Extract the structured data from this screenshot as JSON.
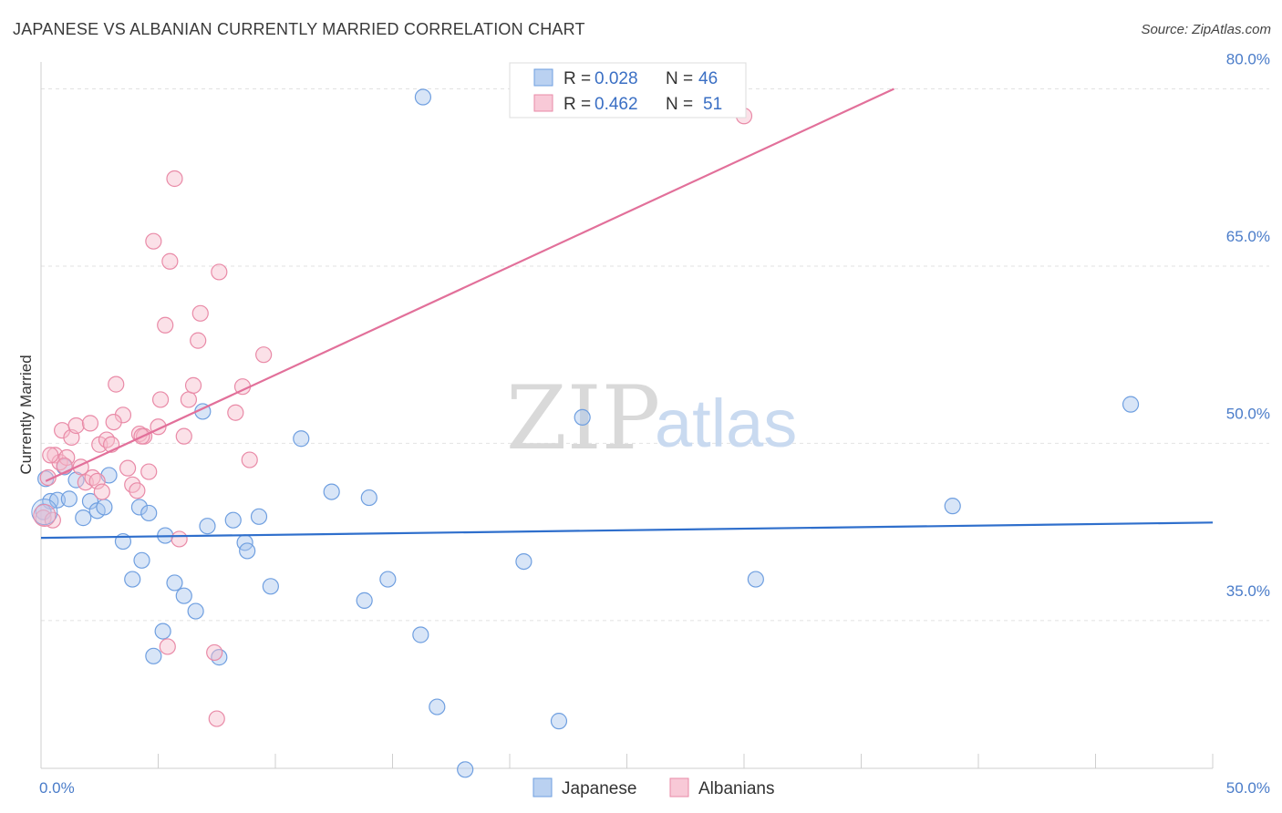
{
  "title": "JAPANESE VS ALBANIAN CURRENTLY MARRIED CORRELATION CHART",
  "source": "Source: ZipAtlas.com",
  "watermark": {
    "zip": "ZIP",
    "atlas": "atlas"
  },
  "colors": {
    "japanese_fill": "#a9c6ee",
    "japanese_stroke": "#6f9fe0",
    "japanese_line": "#2f6fcc",
    "albanian_fill": "#f6bccd",
    "albanian_stroke": "#e98aa7",
    "albanian_line": "#e2709a",
    "grid": "#e2e2e2",
    "tick_label": "#4a7cc9"
  },
  "legend": {
    "rows": [
      {
        "r_label": "R =",
        "r_value": "0.028",
        "n_label": "N =",
        "n_value": "46",
        "series": "japanese"
      },
      {
        "r_label": "R =",
        "r_value": "0.462",
        "n_label": "N =",
        "n_value": "51",
        "series": "albanian"
      }
    ]
  },
  "chart_data": {
    "type": "scatter",
    "ylabel": "Currently Married",
    "xlabel": "",
    "xlim": [
      0,
      50
    ],
    "ylim": [
      22.5,
      81.5
    ],
    "x_tick_labels": [
      {
        "value": 0,
        "label": "0.0%"
      },
      {
        "value": 50,
        "label": "50.0%"
      }
    ],
    "x_minor_ticks": [
      0,
      5,
      10,
      15,
      20,
      25,
      30,
      35,
      40,
      45,
      50
    ],
    "y_ticks": [
      {
        "value": 35,
        "label": "35.0%"
      },
      {
        "value": 50,
        "label": "50.0%"
      },
      {
        "value": 65,
        "label": "65.0%"
      },
      {
        "value": 80,
        "label": "80.0%"
      }
    ],
    "grid": true,
    "legend_placement": "top-center",
    "series": [
      {
        "name": "Japanese",
        "key": "japanese",
        "trend": {
          "x": [
            0,
            50
          ],
          "y": [
            42.0,
            43.3
          ]
        },
        "points": [
          [
            0.2,
            47.0
          ],
          [
            0.4,
            45.1
          ],
          [
            0.7,
            45.2
          ],
          [
            1.0,
            48.0
          ],
          [
            1.2,
            45.3
          ],
          [
            1.5,
            46.9
          ],
          [
            1.8,
            43.7
          ],
          [
            2.1,
            45.1
          ],
          [
            2.4,
            44.3
          ],
          [
            2.7,
            44.6
          ],
          [
            2.9,
            47.3
          ],
          [
            3.5,
            41.7
          ],
          [
            3.9,
            38.5
          ],
          [
            4.2,
            44.6
          ],
          [
            4.3,
            40.1
          ],
          [
            4.6,
            44.1
          ],
          [
            4.8,
            32.0
          ],
          [
            5.2,
            34.1
          ],
          [
            5.3,
            42.2
          ],
          [
            5.7,
            38.2
          ],
          [
            6.1,
            37.1
          ],
          [
            6.6,
            35.8
          ],
          [
            6.9,
            52.7
          ],
          [
            7.1,
            43.0
          ],
          [
            7.6,
            31.9
          ],
          [
            8.2,
            43.5
          ],
          [
            8.7,
            41.6
          ],
          [
            8.8,
            40.9
          ],
          [
            9.3,
            43.8
          ],
          [
            9.8,
            37.9
          ],
          [
            11.1,
            50.4
          ],
          [
            12.4,
            45.9
          ],
          [
            13.8,
            36.7
          ],
          [
            14.0,
            45.4
          ],
          [
            14.8,
            38.5
          ],
          [
            16.2,
            33.8
          ],
          [
            16.3,
            79.3
          ],
          [
            16.9,
            27.7
          ],
          [
            18.1,
            22.4
          ],
          [
            20.6,
            40.0
          ],
          [
            22.1,
            26.5
          ],
          [
            23.1,
            52.2
          ],
          [
            30.5,
            38.5
          ],
          [
            38.9,
            44.7
          ],
          [
            46.5,
            53.3
          ],
          [
            0.1,
            44.2
          ]
        ]
      },
      {
        "name": "Albanians",
        "key": "albanian",
        "trend": {
          "x": [
            0.2,
            36.4
          ],
          "y": [
            46.8,
            80.0
          ]
        },
        "points": [
          [
            0.1,
            43.7
          ],
          [
            0.3,
            47.1
          ],
          [
            0.5,
            43.5
          ],
          [
            0.6,
            49.0
          ],
          [
            0.8,
            48.4
          ],
          [
            0.9,
            51.1
          ],
          [
            1.1,
            48.8
          ],
          [
            1.3,
            50.5
          ],
          [
            1.5,
            51.5
          ],
          [
            1.7,
            48.0
          ],
          [
            1.9,
            46.7
          ],
          [
            2.1,
            51.7
          ],
          [
            2.2,
            47.1
          ],
          [
            2.4,
            46.8
          ],
          [
            2.5,
            49.9
          ],
          [
            2.6,
            45.9
          ],
          [
            2.8,
            50.3
          ],
          [
            3.0,
            49.9
          ],
          [
            3.2,
            55.0
          ],
          [
            3.5,
            52.4
          ],
          [
            3.7,
            47.9
          ],
          [
            3.9,
            46.5
          ],
          [
            4.1,
            46.0
          ],
          [
            4.2,
            50.8
          ],
          [
            4.4,
            50.6
          ],
          [
            4.6,
            47.6
          ],
          [
            5.0,
            51.4
          ],
          [
            5.1,
            53.7
          ],
          [
            5.3,
            60.0
          ],
          [
            5.4,
            32.8
          ],
          [
            5.5,
            65.4
          ],
          [
            5.7,
            72.4
          ],
          [
            5.9,
            41.9
          ],
          [
            6.1,
            50.6
          ],
          [
            6.3,
            53.7
          ],
          [
            6.5,
            54.9
          ],
          [
            6.7,
            58.7
          ],
          [
            6.8,
            61.0
          ],
          [
            7.4,
            32.3
          ],
          [
            7.5,
            26.7
          ],
          [
            7.6,
            64.5
          ],
          [
            8.3,
            52.6
          ],
          [
            8.6,
            54.8
          ],
          [
            8.9,
            48.6
          ],
          [
            9.5,
            57.5
          ],
          [
            30.0,
            77.7
          ],
          [
            4.8,
            67.1
          ],
          [
            1.0,
            48.1
          ],
          [
            4.3,
            50.6
          ],
          [
            3.1,
            51.8
          ],
          [
            0.4,
            49.0
          ]
        ]
      }
    ]
  },
  "bottom_legend": {
    "items": [
      {
        "label": "Japanese",
        "series": "japanese"
      },
      {
        "label": "Albanians",
        "series": "albanian"
      }
    ]
  }
}
